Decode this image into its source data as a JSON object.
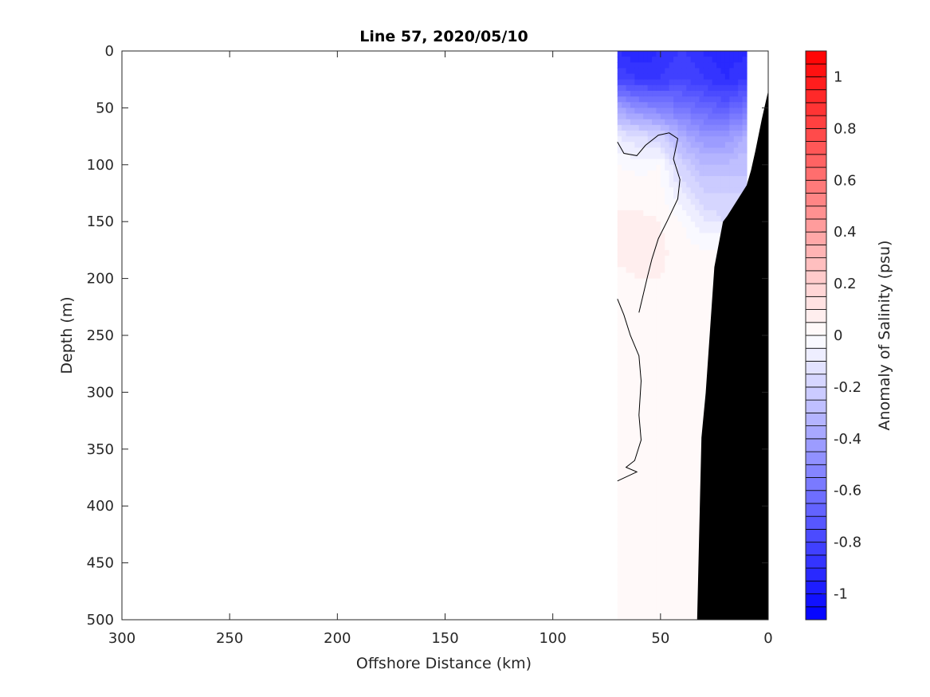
{
  "chart_data": {
    "type": "heatmap",
    "title": "Line 57, 2020/05/10",
    "xlabel": "Offshore Distance (km)",
    "ylabel": "Depth (m)",
    "colorbar_label": "Anomaly of Salinity (psu)",
    "xlim": [
      300,
      0
    ],
    "ylim": [
      0,
      500
    ],
    "x_reversed": true,
    "y_reversed": true,
    "xticks": [
      "300",
      "250",
      "200",
      "150",
      "100",
      "50",
      "0"
    ],
    "yticks": [
      "0",
      "50",
      "100",
      "150",
      "200",
      "250",
      "300",
      "350",
      "400",
      "450",
      "500"
    ],
    "colorbar": {
      "range": [
        -1.1,
        1.1
      ],
      "ticks": [
        1,
        0.8,
        0.6,
        0.4,
        0.2,
        0,
        -0.2,
        -0.4,
        -0.6,
        -0.8,
        -1
      ],
      "ticklabels": [
        "1",
        "0.8",
        "0.6",
        "0.4",
        "0.2",
        "0",
        "-0.2",
        "-0.4",
        "-0.6",
        "-0.8",
        "-1"
      ],
      "levels": 44,
      "negative_color": "#0000ff",
      "positive_color": "#ff0000",
      "zero_color": "#ffffff"
    },
    "stations_km": [
      70,
      60,
      50,
      40,
      30,
      20,
      10
    ],
    "depths_m": [
      0,
      25,
      50,
      75,
      100,
      125,
      150,
      175,
      200,
      250,
      300,
      350,
      400,
      450,
      500
    ],
    "anomaly_psu": [
      [
        -0.9,
        -0.95,
        -0.9,
        -0.85,
        -0.9,
        -0.95,
        -0.9
      ],
      [
        -0.8,
        -0.85,
        -0.85,
        -0.8,
        -0.85,
        -0.9,
        -0.85
      ],
      [
        -0.4,
        -0.5,
        -0.55,
        -0.6,
        -0.65,
        -0.7,
        -0.6
      ],
      [
        -0.1,
        -0.15,
        -0.2,
        -0.35,
        -0.45,
        -0.45,
        -0.35
      ],
      [
        0.0,
        -0.02,
        0.0,
        -0.2,
        -0.3,
        -0.3,
        -0.25
      ],
      [
        0.04,
        0.03,
        0.02,
        -0.1,
        -0.2,
        -0.2,
        null
      ],
      [
        0.06,
        0.06,
        0.05,
        0.0,
        -0.1,
        null,
        null
      ],
      [
        0.06,
        0.07,
        0.06,
        0.03,
        0.0,
        null,
        null
      ],
      [
        0.04,
        0.05,
        0.05,
        0.04,
        0.03,
        null,
        null
      ],
      [
        0.0,
        0.02,
        0.04,
        0.04,
        0.04,
        null,
        null
      ],
      [
        0.0,
        0.01,
        0.04,
        0.04,
        null,
        null,
        null
      ],
      [
        0.0,
        0.01,
        0.04,
        0.04,
        null,
        null,
        null
      ],
      [
        0.02,
        0.01,
        0.03,
        0.04,
        null,
        null,
        null
      ],
      [
        0.04,
        0.02,
        0.0,
        0.0,
        null,
        null,
        null
      ],
      [
        0.04,
        0.03,
        0.0,
        0.0,
        null,
        null,
        null
      ]
    ],
    "zero_contours": [
      [
        [
          70,
          80
        ],
        [
          67,
          90
        ],
        [
          61,
          92
        ],
        [
          57,
          83
        ],
        [
          51,
          74
        ],
        [
          46,
          72
        ],
        [
          42,
          77
        ],
        [
          44,
          95
        ],
        [
          41,
          113
        ],
        [
          42,
          130
        ],
        [
          47,
          150
        ],
        [
          51,
          165
        ],
        [
          54,
          183
        ],
        [
          56,
          198
        ],
        [
          60,
          230
        ]
      ],
      [
        [
          70,
          218
        ],
        [
          67,
          232
        ],
        [
          64,
          250
        ],
        [
          60,
          268
        ],
        [
          59,
          290
        ],
        [
          60,
          320
        ],
        [
          59,
          342
        ],
        [
          62,
          360
        ],
        [
          66,
          366
        ],
        [
          61,
          370
        ],
        [
          70,
          378
        ]
      ]
    ],
    "bathymetry": {
      "fill_color": "#000000",
      "points": [
        [
          0,
          35
        ],
        [
          3,
          60
        ],
        [
          6,
          88
        ],
        [
          8,
          105
        ],
        [
          10,
          118
        ],
        [
          14,
          130
        ],
        [
          19,
          145
        ],
        [
          21,
          150
        ],
        [
          25,
          190
        ],
        [
          27,
          245
        ],
        [
          29,
          300
        ],
        [
          31,
          340
        ],
        [
          33,
          500
        ]
      ]
    }
  }
}
